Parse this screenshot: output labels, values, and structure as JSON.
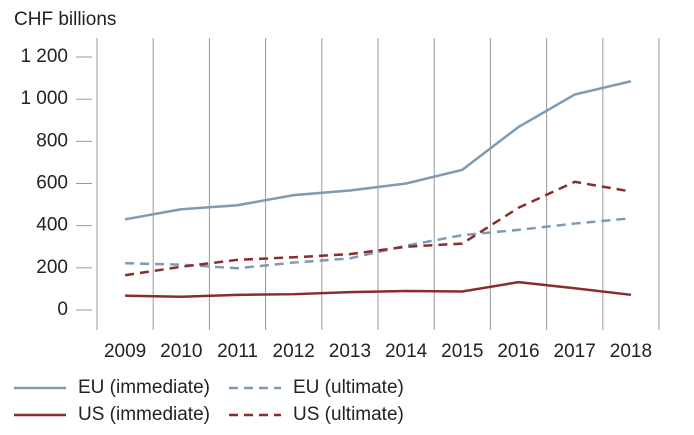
{
  "chart_data": {
    "type": "line",
    "ylabel": "CHF billions",
    "categories": [
      "2009",
      "2010",
      "2011",
      "2012",
      "2013",
      "2014",
      "2015",
      "2016",
      "2017",
      "2018"
    ],
    "series": [
      {
        "name": "EU (immediate)",
        "color": "#7f9ab3",
        "dash": false,
        "values": [
          430,
          478,
          497,
          545,
          567,
          600,
          665,
          868,
          1022,
          1085
        ]
      },
      {
        "name": "EU (ultimate)",
        "color": "#7f9ab3",
        "dash": true,
        "values": [
          222,
          215,
          198,
          225,
          245,
          305,
          355,
          380,
          410,
          435
        ]
      },
      {
        "name": "US (immediate)",
        "color": "#8b2c2c",
        "dash": false,
        "values": [
          68,
          63,
          72,
          75,
          85,
          90,
          88,
          132,
          103,
          72
        ]
      },
      {
        "name": "US (ultimate)",
        "color": "#8b2c2c",
        "dash": true,
        "values": [
          165,
          205,
          238,
          250,
          265,
          300,
          315,
          485,
          608,
          562
        ]
      }
    ],
    "ylim": [
      0,
      1200
    ],
    "yticks": [
      0,
      200,
      400,
      600,
      800,
      {
        "value": 1000,
        "label": "1 000"
      },
      {
        "value": 1200,
        "label": "1 200"
      }
    ]
  }
}
